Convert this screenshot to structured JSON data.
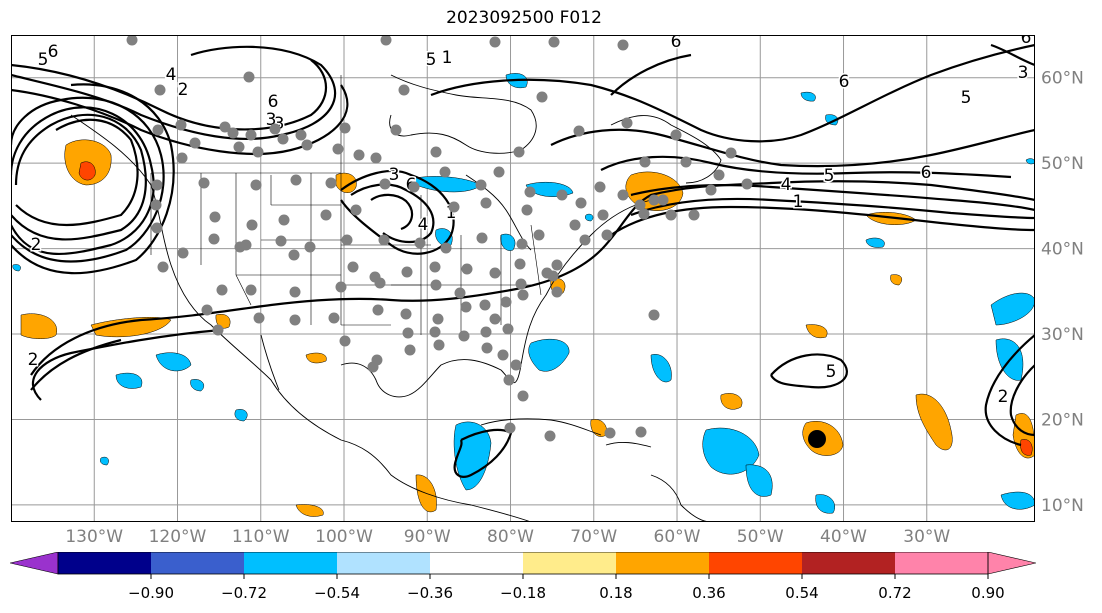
{
  "title": "2023092500 F012",
  "map": {
    "lon_range": [
      -140,
      -17
    ],
    "lat_range": [
      8,
      65
    ],
    "lon_ticks": [
      {
        "value": -130,
        "label": "130°W"
      },
      {
        "value": -120,
        "label": "120°W"
      },
      {
        "value": -110,
        "label": "110°W"
      },
      {
        "value": -100,
        "label": "100°W"
      },
      {
        "value": -90,
        "label": "90°W"
      },
      {
        "value": -80,
        "label": "80°W"
      },
      {
        "value": -70,
        "label": "70°W"
      },
      {
        "value": -60,
        "label": "60°W"
      },
      {
        "value": -50,
        "label": "50°W"
      },
      {
        "value": -40,
        "label": "40°W"
      },
      {
        "value": -30,
        "label": "30°W"
      }
    ],
    "lat_ticks": [
      {
        "value": 60,
        "label": "60°N"
      },
      {
        "value": 50,
        "label": "50°N"
      },
      {
        "value": 40,
        "label": "40°N"
      },
      {
        "value": 30,
        "label": "30°N"
      },
      {
        "value": 20,
        "label": "20°N"
      },
      {
        "value": 10,
        "label": "10°N"
      }
    ],
    "grid": true,
    "contour_labels": [
      "6",
      "5",
      "4",
      "2",
      "6",
      "3",
      "1",
      "6",
      "6",
      "5",
      "3",
      "4",
      "6",
      "5",
      "1",
      "6",
      "5",
      "2",
      "2",
      "1",
      "2",
      "5",
      "6",
      "3",
      "4",
      "3"
    ],
    "stations_note": "gray markers",
    "colors": {
      "contour": "#000000",
      "station": "#808080",
      "grid": "#999999"
    }
  },
  "colorbar": {
    "ticks": [
      "−0.90",
      "−0.72",
      "−0.54",
      "−0.36",
      "−0.18",
      "0.18",
      "0.36",
      "0.54",
      "0.72",
      "0.90"
    ],
    "colors": [
      "#9a32cd",
      "#00008b",
      "#3a5fcd",
      "#00bfff",
      "#b0e2ff",
      "#ffffff",
      "#ffec8b",
      "#ffa500",
      "#ff4500",
      "#b22222",
      "#ff83aa",
      "#ff83aa"
    ],
    "extend": "both"
  }
}
